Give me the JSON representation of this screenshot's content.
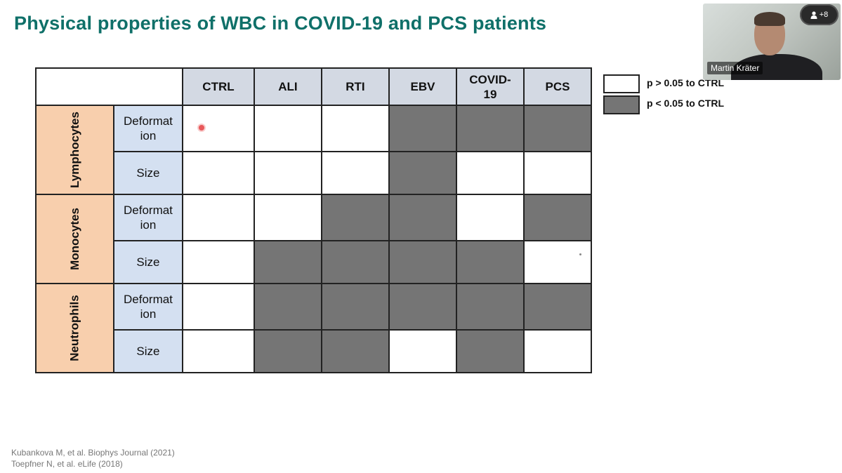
{
  "slide": {
    "title": "Physical properties of WBC in COVID-19 and PCS patients",
    "columns": [
      "CTRL",
      "ALI",
      "RTI",
      "EBV",
      "COVID-\n19",
      "PCS"
    ],
    "groups": [
      {
        "label": "Lymphocytes",
        "rows": [
          {
            "property": "Deformat\nion",
            "cells": [
              "white",
              "white",
              "white",
              "grey",
              "grey",
              "grey"
            ]
          },
          {
            "property": "Size",
            "cells": [
              "white",
              "white",
              "white",
              "grey",
              "white",
              "white"
            ]
          }
        ]
      },
      {
        "label": "Monocytes",
        "rows": [
          {
            "property": "Deformat\nion",
            "cells": [
              "white",
              "white",
              "grey",
              "grey",
              "white",
              "grey"
            ]
          },
          {
            "property": "Size",
            "cells": [
              "white",
              "grey",
              "grey",
              "grey",
              "grey",
              "white"
            ]
          }
        ]
      },
      {
        "label": "Neutrophils",
        "rows": [
          {
            "property": "Deformat\nion",
            "cells": [
              "white",
              "grey",
              "grey",
              "grey",
              "grey",
              "grey"
            ]
          },
          {
            "property": "Size",
            "cells": [
              "white",
              "grey",
              "grey",
              "white",
              "grey",
              "white"
            ]
          }
        ]
      }
    ],
    "legend": [
      {
        "label": "p > 0.05 to CTRL",
        "color": "#ffffff"
      },
      {
        "label": "p < 0.05 to CTRL",
        "color": "#757575"
      }
    ],
    "references": [
      "Kubankova M, et al. Biophys Journal (2021)",
      "Toepfner N, et al. eLife (2018)"
    ]
  },
  "video": {
    "participant_name": "Martin Kräter",
    "participants_badge": "+8",
    "badge_icon": "person-icon"
  }
}
